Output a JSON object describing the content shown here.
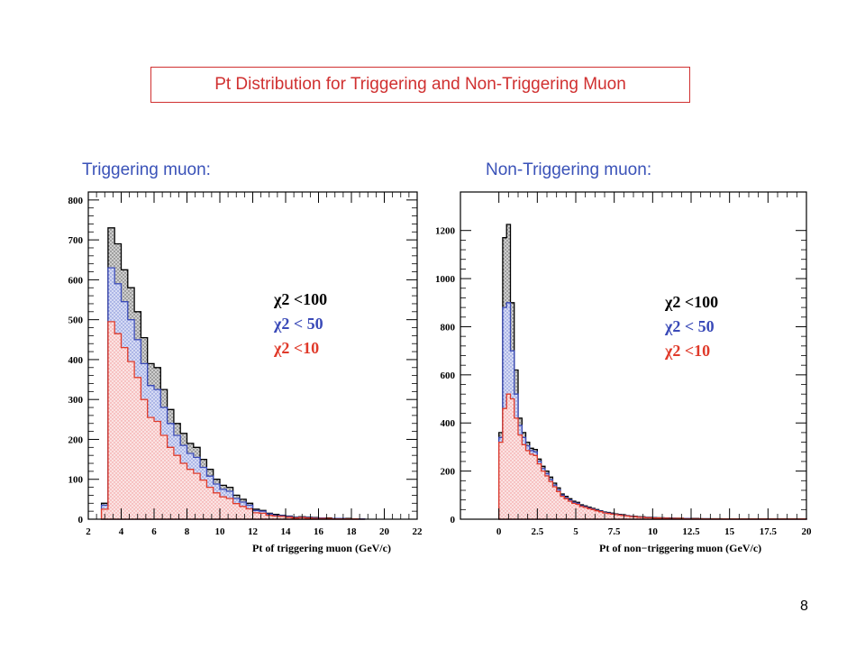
{
  "slide": {
    "title": "Pt Distribution for Triggering and Non-Triggering Muon",
    "page_number": "8"
  },
  "colors": {
    "title": "#d03030",
    "heading": "#3a52b8",
    "chi100": "#000000",
    "chi50": "#3a4ab8",
    "chi10": "#e03a2a"
  },
  "chart_data": [
    {
      "type": "histogram",
      "heading": "Triggering muon:",
      "xlabel": "Pt of triggering muon (GeV/c)",
      "xlim": [
        2,
        22
      ],
      "ylim": [
        0,
        820
      ],
      "xticks": [
        2,
        4,
        6,
        8,
        10,
        12,
        14,
        16,
        18,
        20,
        22
      ],
      "xticklabels": [
        "2",
        "4",
        "6",
        "8",
        "10",
        "12",
        "14",
        "16",
        "18",
        "20",
        "22"
      ],
      "yticks": [
        0,
        100,
        200,
        300,
        400,
        500,
        600,
        700,
        800
      ],
      "yticklabels": [
        "0",
        "100",
        "200",
        "300",
        "400",
        "500",
        "600",
        "700",
        "800"
      ],
      "bin_start": 2.8,
      "bin_width": 0.4,
      "legend": [
        "χ2  <100",
        "χ2  < 50",
        "χ2  <10"
      ],
      "series": [
        {
          "name": "χ2 <100",
          "color": "#000000",
          "values": [
            40,
            730,
            690,
            625,
            580,
            520,
            455,
            390,
            380,
            325,
            275,
            240,
            215,
            190,
            180,
            150,
            125,
            100,
            85,
            80,
            60,
            50,
            40,
            25,
            22,
            15,
            12,
            10,
            8,
            5,
            6,
            5,
            4,
            3,
            3,
            2,
            2,
            2,
            1,
            1
          ]
        },
        {
          "name": "χ2 < 50",
          "color": "#3a4ab8",
          "values": [
            35,
            630,
            590,
            545,
            500,
            450,
            390,
            335,
            325,
            280,
            240,
            210,
            185,
            165,
            155,
            130,
            108,
            88,
            75,
            70,
            52,
            43,
            35,
            22,
            20,
            13,
            10,
            9,
            7,
            4,
            5,
            4,
            3,
            3,
            2,
            2,
            2,
            1,
            1,
            1
          ]
        },
        {
          "name": "χ2 <10",
          "color": "#e03a2a",
          "values": [
            25,
            495,
            465,
            430,
            395,
            355,
            300,
            255,
            245,
            210,
            180,
            160,
            140,
            125,
            115,
            98,
            80,
            66,
            56,
            52,
            39,
            32,
            26,
            16,
            15,
            10,
            8,
            7,
            5,
            3,
            4,
            3,
            2,
            2,
            2,
            1,
            1,
            1,
            1,
            0
          ]
        }
      ]
    },
    {
      "type": "histogram",
      "heading": "Non-Triggering muon:",
      "xlabel": "Pt of non−triggering muon (GeV/c)",
      "xlim": [
        -2.5,
        20
      ],
      "ylim": [
        0,
        1360
      ],
      "xticks": [
        0,
        2.5,
        5,
        7.5,
        10,
        12.5,
        15,
        17.5,
        20
      ],
      "xticklabels": [
        "0",
        "2.5",
        "5",
        "7.5",
        "10",
        "12.5",
        "15",
        "17.5",
        "20"
      ],
      "yticks": [
        0,
        200,
        400,
        600,
        800,
        1000,
        1200
      ],
      "yticklabels": [
        "0",
        "200",
        "400",
        "600",
        "800",
        "1000",
        "1200"
      ],
      "bin_start": 0,
      "bin_width": 0.25,
      "legend": [
        "χ2  <100",
        "χ2  < 50",
        "χ2  <10"
      ],
      "series": [
        {
          "name": "χ2 <100",
          "color": "#000000",
          "values": [
            360,
            1170,
            1225,
            900,
            620,
            420,
            360,
            320,
            295,
            290,
            250,
            220,
            200,
            175,
            150,
            130,
            105,
            95,
            85,
            75,
            70,
            60,
            55,
            50,
            45,
            40,
            35,
            30,
            28,
            25,
            22,
            20,
            18,
            15,
            13,
            12,
            10,
            10,
            8,
            8,
            7,
            6,
            6,
            5,
            5,
            4,
            4,
            4,
            3,
            3,
            3,
            3,
            2,
            2,
            2,
            2,
            2,
            2,
            1,
            1,
            1,
            1,
            1,
            1,
            1,
            1,
            1,
            1,
            1,
            1,
            1,
            1,
            1,
            1,
            1,
            1,
            1,
            1,
            1,
            1
          ]
        },
        {
          "name": "χ2 < 50",
          "color": "#3a4ab8",
          "values": [
            340,
            880,
            900,
            700,
            520,
            390,
            340,
            305,
            285,
            280,
            240,
            210,
            190,
            165,
            142,
            122,
            100,
            90,
            80,
            70,
            66,
            56,
            52,
            47,
            42,
            37,
            33,
            28,
            26,
            23,
            20,
            18,
            16,
            14,
            12,
            11,
            9,
            9,
            7,
            7,
            6,
            5,
            5,
            4,
            4,
            4,
            3,
            3,
            3,
            3,
            2,
            2,
            2,
            2,
            2,
            1,
            1,
            1,
            1,
            1,
            1,
            1,
            1,
            1,
            1,
            1,
            1,
            1,
            1,
            1,
            1,
            1,
            1,
            1,
            1,
            1,
            1,
            1,
            1,
            1
          ]
        },
        {
          "name": "χ2 <10",
          "color": "#e03a2a",
          "values": [
            320,
            460,
            520,
            500,
            420,
            350,
            310,
            285,
            270,
            265,
            230,
            200,
            180,
            157,
            135,
            115,
            95,
            85,
            75,
            66,
            62,
            53,
            49,
            44,
            40,
            35,
            31,
            26,
            24,
            21,
            19,
            17,
            15,
            13,
            11,
            10,
            8,
            8,
            6,
            6,
            5,
            5,
            4,
            4,
            3,
            3,
            3,
            3,
            2,
            2,
            2,
            2,
            2,
            1,
            1,
            1,
            1,
            1,
            1,
            1,
            1,
            1,
            1,
            1,
            1,
            1,
            1,
            1,
            1,
            1,
            1,
            1,
            1,
            1,
            1,
            1,
            1,
            1,
            1,
            1
          ]
        }
      ]
    }
  ]
}
